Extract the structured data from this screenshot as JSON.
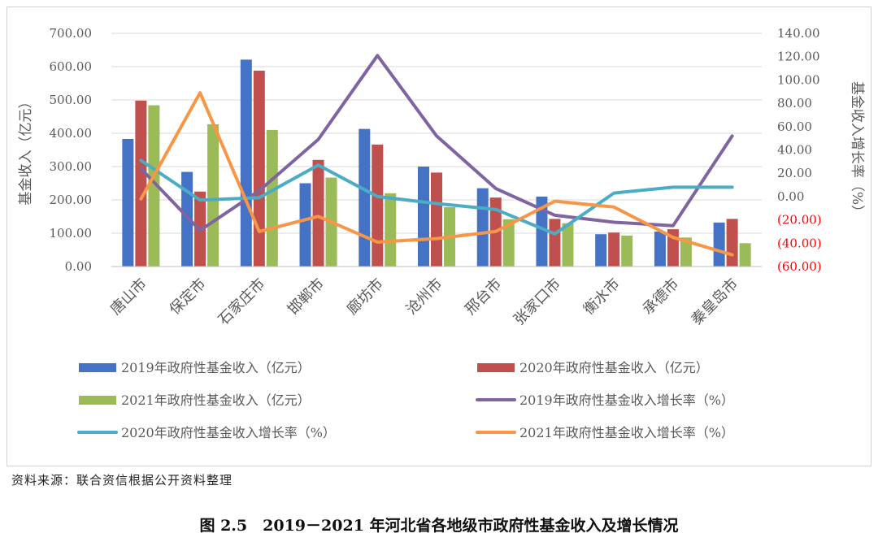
{
  "chart_data": {
    "type": "bar+line",
    "categories": [
      "唐山市",
      "保定市",
      "石家庄市",
      "邯郸市",
      "廊坊市",
      "沧州市",
      "邢台市",
      "张家口市",
      "衡水市",
      "承德市",
      "秦皇岛市"
    ],
    "bar_series": [
      {
        "name": "2019年政府性基金收入（亿元）",
        "color": "#4472C4",
        "values": [
          383,
          284,
          621,
          250,
          413,
          300,
          235,
          210,
          97,
          105,
          132
        ]
      },
      {
        "name": "2020年政府性基金收入（亿元）",
        "color": "#C0504D",
        "values": [
          498,
          225,
          588,
          320,
          366,
          282,
          207,
          143,
          102,
          112,
          143
        ]
      },
      {
        "name": "2021年政府性基金收入（亿元）",
        "color": "#9BBB59",
        "values": [
          484,
          427,
          410,
          267,
          220,
          178,
          142,
          130,
          93,
          87,
          70
        ]
      }
    ],
    "line_series": [
      {
        "name": "2019年政府性基金收入增长率（%）",
        "color": "#8064A2",
        "values": [
          24,
          -29,
          5,
          49,
          121,
          52,
          7,
          -16,
          -22,
          -25,
          52
        ]
      },
      {
        "name": "2020年政府性基金收入增长率（%）",
        "color": "#4BACC6",
        "values": [
          31,
          -3,
          -1,
          27,
          0,
          -6,
          -11,
          -32,
          3,
          8,
          8
        ]
      },
      {
        "name": "2021年政府性基金收入增长率（%）",
        "color": "#F79646",
        "values": [
          -2,
          89,
          -30,
          -17,
          -39,
          -36,
          -30,
          -4,
          -9,
          -35,
          -50
        ]
      }
    ],
    "y_left": {
      "label": "基金收入（亿元）",
      "min": 0,
      "max": 700,
      "step": 100,
      "ticks": [
        "0.00",
        "100.00",
        "200.00",
        "300.00",
        "400.00",
        "500.00",
        "600.00",
        "700.00"
      ]
    },
    "y_right": {
      "label": "基金收入增长率（%）",
      "min": -60,
      "max": 140,
      "step": 20,
      "ticks": [
        "(60.00)",
        "(40.00)",
        "(20.00)",
        "0.00",
        "20.00",
        "40.00",
        "60.00",
        "80.00",
        "100.00",
        "120.00",
        "140.00"
      ],
      "negative_tick_color": "#FF0000"
    },
    "grid": true,
    "legend_position": "bottom"
  },
  "source_note": "资料来源：联合资信根据公开资料整理",
  "figure_caption": "图 2.5　2019－2021 年河北省各地级市政府性基金收入及增长情况"
}
